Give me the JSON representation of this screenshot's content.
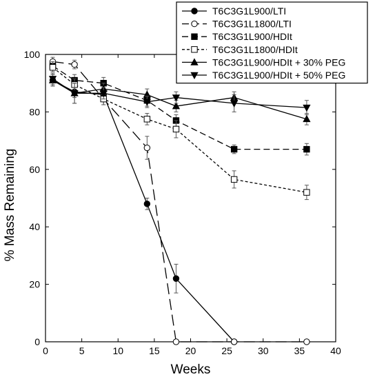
{
  "chart_data": {
    "type": "line",
    "title": "",
    "xlabel": "Weeks",
    "ylabel": "% Mass Remaining",
    "xlim": [
      0,
      40
    ],
    "ylim": [
      0,
      100
    ],
    "xticks": [
      0,
      5,
      10,
      15,
      20,
      25,
      30,
      35,
      40
    ],
    "yticks": [
      0,
      20,
      40,
      60,
      80,
      100
    ],
    "grid": false,
    "legend_position": "top-right",
    "series": [
      {
        "name": "T6C3G1L900/LTI",
        "marker": "filled-circle",
        "dash": "solid",
        "x": [
          1,
          4,
          8,
          14,
          18,
          26
        ],
        "y": [
          91,
          87,
          86,
          48,
          22,
          0
        ],
        "err": [
          2,
          2,
          2,
          2,
          5,
          0
        ]
      },
      {
        "name": "T6C3G1L1800/LTI",
        "marker": "open-circle",
        "dash": "long-dash",
        "x": [
          1,
          4,
          8,
          14,
          18,
          26,
          36
        ],
        "y": [
          97.5,
          96.5,
          84.5,
          67.5,
          0,
          0,
          0
        ],
        "err": [
          1.5,
          1.5,
          2,
          4,
          0,
          0,
          0
        ]
      },
      {
        "name": "T6C3G1L900/HDIt",
        "marker": "filled-square",
        "dash": "dash",
        "x": [
          1,
          4,
          8,
          14,
          18,
          26,
          36
        ],
        "y": [
          96,
          91,
          90,
          84,
          77,
          67,
          67
        ],
        "err": [
          1.5,
          2,
          2,
          2,
          2,
          1.5,
          2
        ]
      },
      {
        "name": "T6C3G1L1800/HDIt",
        "marker": "open-square",
        "dash": "short-dash",
        "x": [
          1,
          4,
          8,
          14,
          18,
          26,
          36
        ],
        "y": [
          95.5,
          89.5,
          84.5,
          77.5,
          74,
          56.5,
          52
        ],
        "err": [
          1.5,
          2,
          2,
          2,
          3,
          3,
          2.5
        ]
      },
      {
        "name": "T6C3G1L900/HDIt + 30% PEG",
        "marker": "filled-triangle-up",
        "dash": "solid",
        "x": [
          1,
          4,
          8,
          14,
          18,
          26,
          36
        ],
        "y": [
          91,
          86.5,
          88,
          86,
          82,
          85,
          77.5
        ],
        "err": [
          2,
          3.5,
          2,
          2,
          2,
          2,
          2
        ]
      },
      {
        "name": "T6C3G1L900/HDIt + 50% PEG",
        "marker": "filled-triangle-down",
        "dash": "solid",
        "x": [
          1,
          4,
          8,
          14,
          18,
          26,
          36
        ],
        "y": [
          91.5,
          86.5,
          86.5,
          83.5,
          85,
          83,
          81.5
        ],
        "err": [
          2,
          3.5,
          2,
          2,
          2,
          3,
          2.5
        ]
      }
    ]
  }
}
